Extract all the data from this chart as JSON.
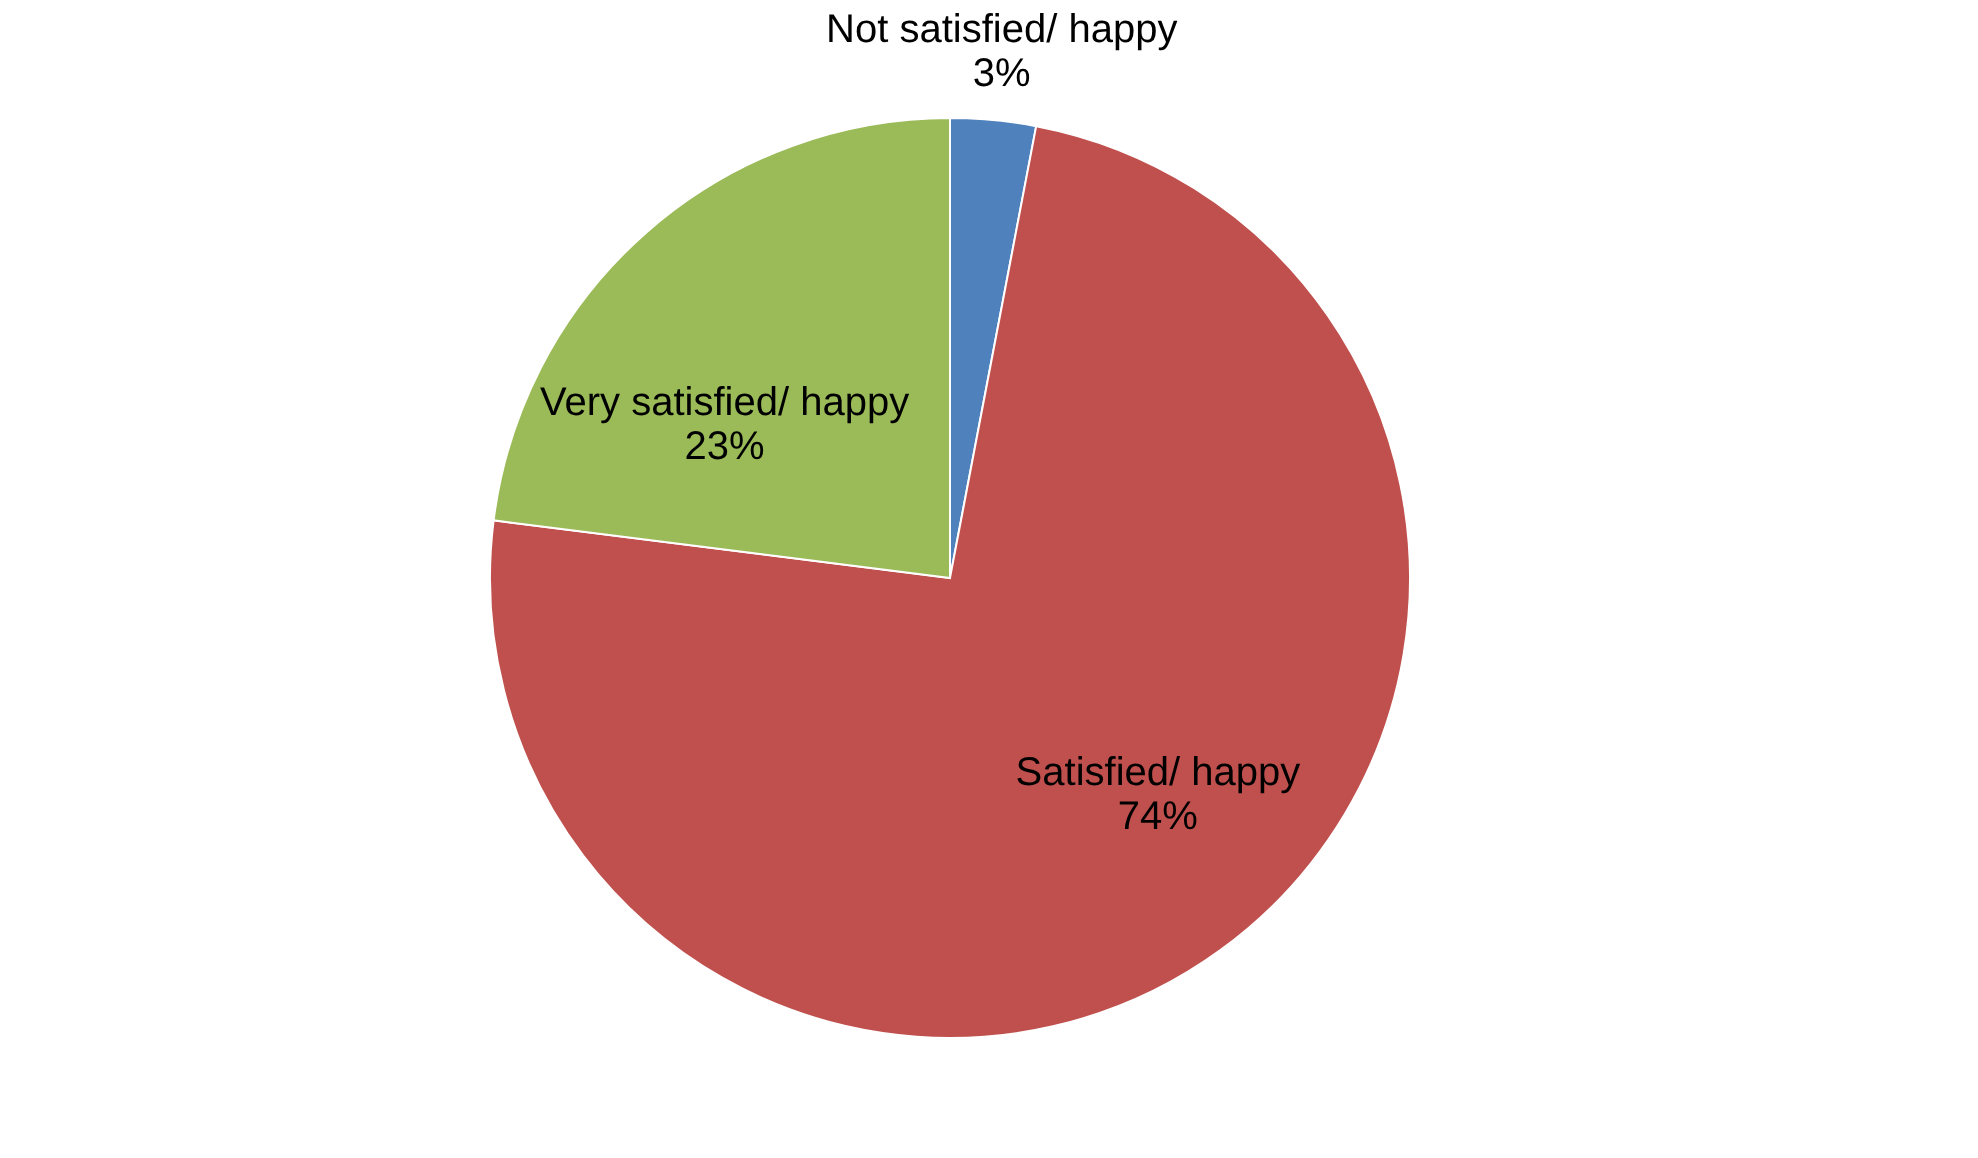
{
  "chart_data": {
    "type": "pie",
    "categories": [
      "Not satisfied/ happy",
      "Satisfied/ happy",
      "Very satisfied/ happy"
    ],
    "values": [
      3,
      74,
      23
    ],
    "colors": [
      "#4f81bd",
      "#c0504d",
      "#9bbb59"
    ],
    "value_labels": [
      "3%",
      "74%",
      "23%"
    ],
    "legend": false
  }
}
